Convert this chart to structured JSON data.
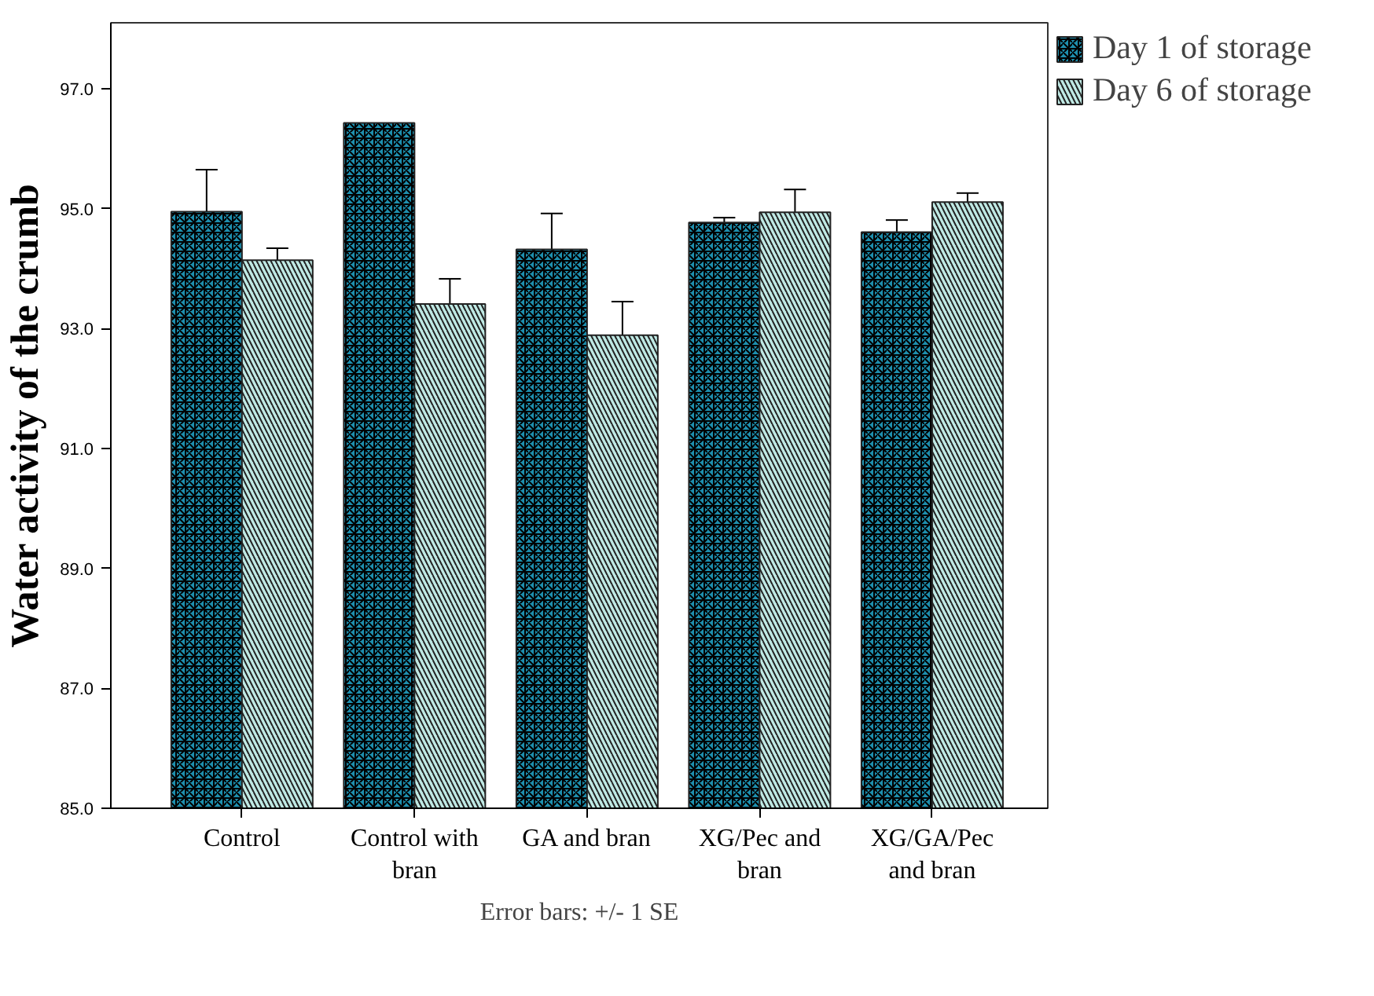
{
  "chart_data": {
    "type": "bar",
    "ylabel": "Water activity of the crumb",
    "categories": [
      "Control",
      "Control with bran",
      "GA and bran",
      "XG/Pec and bran",
      "XG/GA/Pec and bran"
    ],
    "series": [
      {
        "name": "Day 1 of storage",
        "color": "#1e8fae",
        "values": [
          94.95,
          96.43,
          94.32,
          94.77,
          94.61
        ],
        "errors": [
          0.7,
          null,
          0.6,
          0.08,
          0.2
        ]
      },
      {
        "name": "Day 6 of storage",
        "color": "#bfe9e4",
        "values": [
          94.14,
          93.41,
          92.89,
          94.94,
          95.11
        ],
        "errors": [
          0.2,
          0.42,
          0.56,
          0.38,
          0.15
        ]
      }
    ],
    "ylim": [
      85,
      98.1
    ],
    "yticks": [
      {
        "value": 85,
        "label": "85.0"
      },
      {
        "value": 87,
        "label": "87.0"
      },
      {
        "value": 89,
        "label": "89.0"
      },
      {
        "value": 91,
        "label": "91.0"
      },
      {
        "value": 93,
        "label": "93.0"
      },
      {
        "value": 95,
        "label": "95.0"
      },
      {
        "value": 97,
        "label": "97.0"
      }
    ],
    "grid": false,
    "legend": "top right",
    "annotations": [
      "Error bars: +/- 1 SE"
    ]
  }
}
